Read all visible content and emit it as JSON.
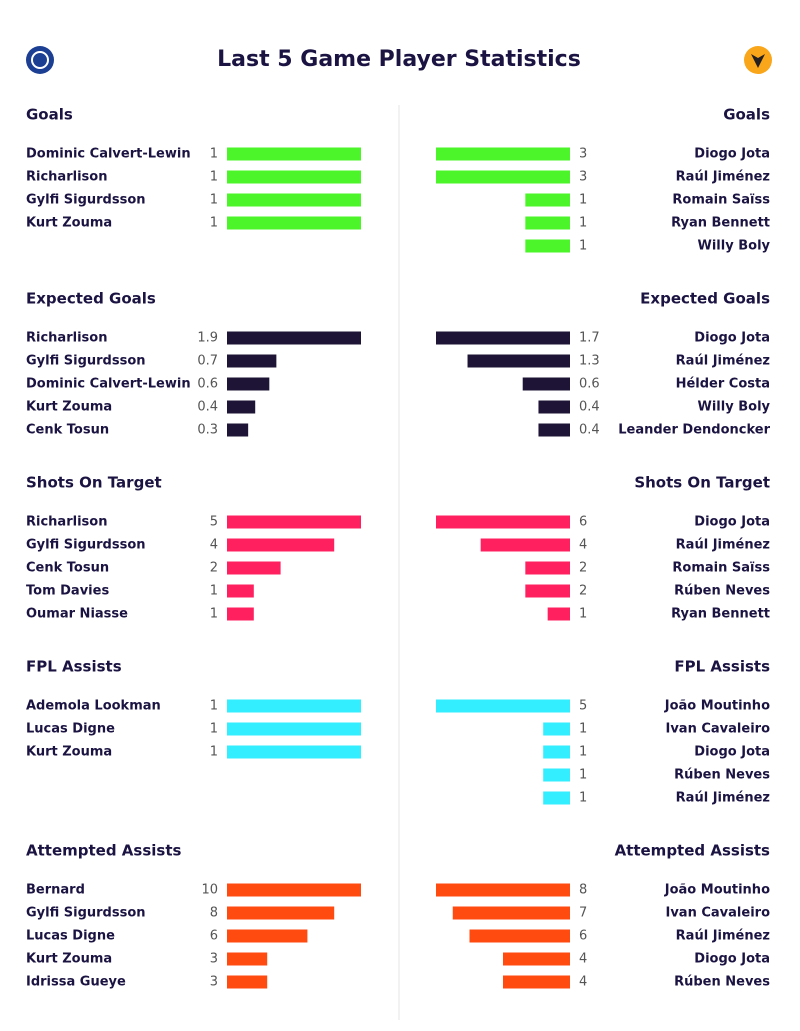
{
  "title": "Last 5 Game Player Statistics",
  "sections": [
    {
      "title": "Goals",
      "color": "#4cf52a",
      "left": [
        {
          "name": "Dominic Calvert-Lewin",
          "value": 1
        },
        {
          "name": "Richarlison",
          "value": 1
        },
        {
          "name": "Gylfi Sigurdsson",
          "value": 1
        },
        {
          "name": "Kurt Zouma",
          "value": 1
        }
      ],
      "right": [
        {
          "name": "Diogo Jota",
          "value": 3
        },
        {
          "name": "Raúl Jiménez",
          "value": 3
        },
        {
          "name": "Romain Saïss",
          "value": 1
        },
        {
          "name": "Ryan Bennett",
          "value": 1
        },
        {
          "name": "Willy Boly",
          "value": 1
        }
      ]
    },
    {
      "title": "Expected Goals",
      "color": "#1e1536",
      "left": [
        {
          "name": "Richarlison",
          "value": 1.9
        },
        {
          "name": "Gylfi Sigurdsson",
          "value": 0.7
        },
        {
          "name": "Dominic Calvert-Lewin",
          "value": 0.6
        },
        {
          "name": "Kurt Zouma",
          "value": 0.4
        },
        {
          "name": "Cenk Tosun",
          "value": 0.3
        }
      ],
      "right": [
        {
          "name": "Diogo Jota",
          "value": 1.7
        },
        {
          "name": "Raúl Jiménez",
          "value": 1.3
        },
        {
          "name": "Hélder Costa",
          "value": 0.6
        },
        {
          "name": "Willy Boly",
          "value": 0.4
        },
        {
          "name": "Leander Dendoncker",
          "value": 0.4
        }
      ]
    },
    {
      "title": "Shots On Target",
      "color": "#ff2060",
      "left": [
        {
          "name": "Richarlison",
          "value": 5
        },
        {
          "name": "Gylfi Sigurdsson",
          "value": 4
        },
        {
          "name": "Cenk Tosun",
          "value": 2
        },
        {
          "name": "Tom Davies",
          "value": 1
        },
        {
          "name": "Oumar Niasse",
          "value": 1
        }
      ],
      "right": [
        {
          "name": "Diogo Jota",
          "value": 6
        },
        {
          "name": "Raúl Jiménez",
          "value": 4
        },
        {
          "name": "Romain Saïss",
          "value": 2
        },
        {
          "name": "Rúben Neves",
          "value": 2
        },
        {
          "name": "Ryan Bennett",
          "value": 1
        }
      ]
    },
    {
      "title": "FPL Assists",
      "color": "#33eeff",
      "left": [
        {
          "name": "Ademola Lookman",
          "value": 1
        },
        {
          "name": "Lucas Digne",
          "value": 1
        },
        {
          "name": "Kurt Zouma",
          "value": 1
        }
      ],
      "right": [
        {
          "name": "João Moutinho",
          "value": 5
        },
        {
          "name": "Ivan Cavaleiro",
          "value": 1
        },
        {
          "name": "Diogo Jota",
          "value": 1
        },
        {
          "name": "Rúben Neves",
          "value": 1
        },
        {
          "name": "Raúl Jiménez",
          "value": 1
        }
      ]
    },
    {
      "title": "Attempted Assists",
      "color": "#ff4a10",
      "left": [
        {
          "name": "Bernard",
          "value": 10
        },
        {
          "name": "Gylfi Sigurdsson",
          "value": 8
        },
        {
          "name": "Lucas Digne",
          "value": 6
        },
        {
          "name": "Kurt Zouma",
          "value": 3
        },
        {
          "name": "Idrissa Gueye",
          "value": 3
        }
      ],
      "right": [
        {
          "name": "João Moutinho",
          "value": 8
        },
        {
          "name": "Ivan Cavaleiro",
          "value": 7
        },
        {
          "name": "Raúl Jiménez",
          "value": 6
        },
        {
          "name": "Diogo Jota",
          "value": 4
        },
        {
          "name": "Rúben Neves",
          "value": 4
        }
      ]
    }
  ]
}
